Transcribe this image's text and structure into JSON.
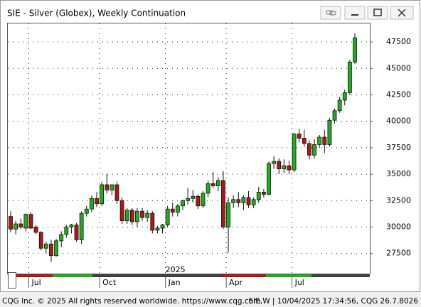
{
  "chart_data": {
    "type": "candlestick",
    "title": "SIE - Silver (Globex), Weekly Continuation",
    "categories": [
      null,
      null,
      null,
      null,
      "Jul",
      null,
      null,
      null,
      null,
      null,
      null,
      null,
      null,
      null,
      null,
      null,
      null,
      null,
      "Oct",
      null,
      null,
      null,
      null,
      null,
      null,
      null,
      null,
      null,
      null,
      null,
      null,
      "Jan",
      null,
      null,
      null,
      null,
      null,
      null,
      null,
      null,
      null,
      null,
      null,
      "Apr",
      null,
      null,
      null,
      null,
      null,
      null,
      null,
      null,
      null,
      null,
      null,
      null,
      "Jul",
      null,
      null,
      null,
      null,
      null,
      null,
      null,
      null,
      null,
      null,
      null,
      null
    ],
    "year_label": "2025",
    "open": [
      31000,
      29800,
      30300,
      29900,
      31200,
      30000,
      29500,
      28000,
      28400,
      27300,
      28700,
      29300,
      30000,
      30200,
      28800,
      31300,
      31700,
      32700,
      32200,
      34000,
      33500,
      34000,
      32500,
      30600,
      31600,
      30500,
      31500,
      30900,
      31300,
      29700,
      29900,
      30200,
      31700,
      31400,
      32000,
      32500,
      32700,
      32900,
      32000,
      33200,
      34100,
      33900,
      34400,
      30000,
      32300,
      32600,
      32300,
      32800,
      32100,
      32600,
      33300,
      33100,
      36000,
      36200,
      35500,
      35800,
      35400,
      38800,
      38400,
      37900,
      36800,
      37800,
      38500,
      37800,
      40100,
      41000,
      42000,
      42700,
      45600
    ],
    "high": [
      31500,
      30600,
      30800,
      31300,
      31400,
      30200,
      29600,
      28600,
      28800,
      28900,
      29600,
      30200,
      30300,
      30400,
      31500,
      32000,
      33000,
      33300,
      34300,
      35000,
      34000,
      34300,
      32800,
      31800,
      31800,
      31800,
      31800,
      31600,
      31500,
      30100,
      30300,
      32000,
      32300,
      32200,
      32600,
      33700,
      33500,
      33100,
      33400,
      34400,
      35200,
      34700,
      35300,
      32800,
      33000,
      33300,
      33000,
      33400,
      32800,
      33800,
      33600,
      36200,
      36700,
      36500,
      36400,
      36300,
      38900,
      39300,
      39200,
      38200,
      38300,
      38700,
      39200,
      40300,
      41200,
      42300,
      43000,
      45800,
      48300
    ],
    "low": [
      29500,
      29300,
      29800,
      29600,
      29800,
      29300,
      27800,
      27500,
      26700,
      27200,
      28100,
      29000,
      29400,
      28600,
      28400,
      31000,
      31400,
      31900,
      32000,
      33200,
      33000,
      32200,
      30300,
      30300,
      30200,
      30000,
      30600,
      30500,
      29400,
      29400,
      29400,
      30000,
      31000,
      31000,
      31600,
      32100,
      32300,
      31700,
      31800,
      32800,
      33700,
      33400,
      29800,
      27600,
      31800,
      31900,
      31600,
      31800,
      31800,
      32300,
      32800,
      33000,
      35500,
      35000,
      35100,
      35000,
      35200,
      38000,
      37600,
      36400,
      36500,
      37500,
      37000,
      37600,
      39800,
      40800,
      41500,
      42500,
      45400
    ],
    "close": [
      29800,
      30300,
      30000,
      31200,
      29900,
      29500,
      28000,
      28400,
      27300,
      28700,
      29300,
      30000,
      30200,
      28800,
      31300,
      31700,
      32700,
      32200,
      34000,
      33500,
      34000,
      32500,
      30600,
      31600,
      30500,
      31500,
      30900,
      31300,
      29700,
      29900,
      30200,
      31700,
      31400,
      32000,
      32500,
      32700,
      32900,
      32000,
      33200,
      34100,
      33900,
      34400,
      30000,
      32300,
      32600,
      32300,
      32800,
      32100,
      32600,
      33300,
      33100,
      36000,
      36200,
      35500,
      35800,
      35400,
      38800,
      38400,
      37900,
      36800,
      37800,
      38500,
      37800,
      40100,
      41000,
      42000,
      42700,
      45600,
      47900
    ],
    "up_color": "#1fae1f",
    "down_color": "#b01818",
    "ylim": [
      25600,
      49250
    ],
    "yticks": [
      27500,
      30000,
      32500,
      35000,
      37500,
      40000,
      42500,
      45000,
      47500
    ],
    "grid": true
  },
  "footer": {
    "left": "CQG Inc. © 2025 All rights reserved worldwide. https://www.cqg.com",
    "right": "SIE,W | 10/04/2025 17:34:56, CQG 26.7.8026"
  }
}
